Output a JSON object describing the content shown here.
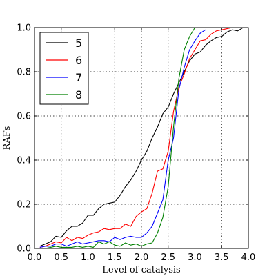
{
  "chart_data": {
    "type": "line",
    "title": "",
    "xlabel": "Level of catalysis",
    "ylabel": "RAFs",
    "xlim": [
      0.0,
      4.0
    ],
    "ylim": [
      0.0,
      1.0
    ],
    "xticks": [
      "0.0",
      "0.5",
      "1.0",
      "1.5",
      "2.0",
      "2.5",
      "3.0",
      "3.5",
      "4.0"
    ],
    "yticks": [
      "0.0",
      "0.2",
      "0.4",
      "0.6",
      "0.8",
      "1.0"
    ],
    "grid": true,
    "legend_position": "top-left",
    "series": [
      {
        "name": "5",
        "color": "#000000",
        "x": [
          0.1,
          0.2,
          0.3,
          0.4,
          0.5,
          0.6,
          0.7,
          0.8,
          0.9,
          1.0,
          1.1,
          1.2,
          1.3,
          1.4,
          1.5,
          1.6,
          1.7,
          1.8,
          1.9,
          2.0,
          2.1,
          2.2,
          2.3,
          2.4,
          2.5,
          2.6,
          2.7,
          2.8,
          2.9,
          3.0,
          3.1,
          3.2,
          3.3,
          3.4,
          3.5,
          3.6,
          3.7,
          3.8,
          3.9
        ],
        "y": [
          0.01,
          0.02,
          0.03,
          0.055,
          0.05,
          0.08,
          0.1,
          0.1,
          0.115,
          0.15,
          0.15,
          0.18,
          0.2,
          0.205,
          0.21,
          0.24,
          0.28,
          0.31,
          0.35,
          0.4,
          0.44,
          0.5,
          0.55,
          0.61,
          0.64,
          0.7,
          0.75,
          0.8,
          0.85,
          0.88,
          0.89,
          0.92,
          0.94,
          0.955,
          0.96,
          0.98,
          0.99,
          0.985,
          1.0
        ]
      },
      {
        "name": "6",
        "color": "#ff0000",
        "x": [
          0.1,
          0.2,
          0.3,
          0.4,
          0.5,
          0.6,
          0.7,
          0.8,
          0.9,
          1.0,
          1.1,
          1.2,
          1.3,
          1.4,
          1.5,
          1.6,
          1.7,
          1.8,
          1.9,
          2.0,
          2.1,
          2.2,
          2.3,
          2.4,
          2.5,
          2.6,
          2.7,
          2.8,
          2.9,
          3.0,
          3.1,
          3.2,
          3.3,
          3.4,
          3.5,
          3.6,
          3.7
        ],
        "y": [
          0.005,
          0.01,
          0.02,
          0.03,
          0.025,
          0.05,
          0.035,
          0.05,
          0.045,
          0.06,
          0.07,
          0.075,
          0.09,
          0.085,
          0.09,
          0.09,
          0.11,
          0.1,
          0.145,
          0.165,
          0.18,
          0.25,
          0.35,
          0.36,
          0.44,
          0.62,
          0.73,
          0.79,
          0.86,
          0.9,
          0.94,
          0.945,
          0.97,
          0.985,
          0.99,
          0.995,
          1.0
        ]
      },
      {
        "name": "7",
        "color": "#0000ff",
        "x": [
          0.1,
          0.2,
          0.3,
          0.4,
          0.5,
          0.6,
          0.7,
          0.8,
          0.9,
          1.0,
          1.1,
          1.2,
          1.3,
          1.4,
          1.5,
          1.6,
          1.7,
          1.8,
          1.9,
          2.0,
          2.1,
          2.2,
          2.3,
          2.4,
          2.5,
          2.6,
          2.7,
          2.8,
          2.9,
          3.0,
          3.1,
          3.2
        ],
        "y": [
          0.005,
          0.01,
          0.01,
          0.02,
          0.02,
          0.01,
          0.02,
          0.03,
          0.02,
          0.025,
          0.03,
          0.035,
          0.035,
          0.03,
          0.05,
          0.04,
          0.05,
          0.055,
          0.05,
          0.05,
          0.07,
          0.1,
          0.16,
          0.22,
          0.4,
          0.5,
          0.72,
          0.82,
          0.9,
          0.94,
          0.975,
          0.99
        ]
      },
      {
        "name": "8",
        "color": "#008000",
        "x": [
          0.1,
          0.2,
          0.3,
          0.4,
          0.5,
          0.6,
          0.7,
          0.8,
          0.9,
          1.0,
          1.1,
          1.2,
          1.3,
          1.4,
          1.5,
          1.6,
          1.7,
          1.8,
          1.9,
          2.0,
          2.1,
          2.2,
          2.3,
          2.4,
          2.5,
          2.6,
          2.7,
          2.8,
          2.9,
          3.0
        ],
        "y": [
          0.0,
          0.0,
          0.005,
          0.01,
          0.005,
          0.005,
          0.005,
          0.01,
          0.005,
          0.01,
          0.005,
          0.03,
          0.02,
          0.03,
          0.015,
          0.01,
          0.025,
          0.015,
          0.02,
          0.01,
          0.02,
          0.025,
          0.07,
          0.14,
          0.28,
          0.55,
          0.77,
          0.9,
          0.96,
          1.0
        ]
      }
    ]
  }
}
